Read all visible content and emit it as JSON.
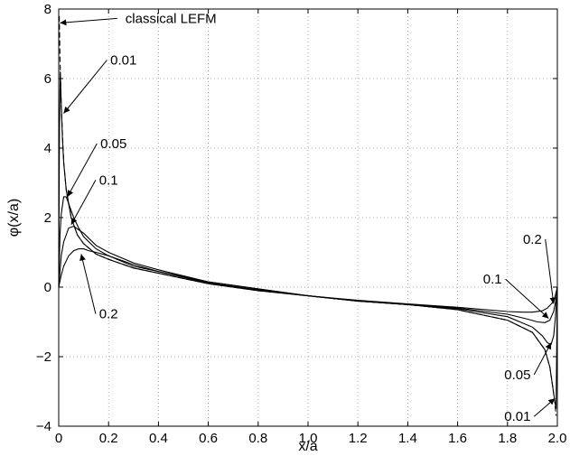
{
  "chart_data": {
    "type": "line",
    "title": "",
    "xlabel": "x/a",
    "ylabel": "φ(x/a)",
    "xlim": [
      0,
      2
    ],
    "ylim": [
      -4,
      8
    ],
    "grid": true,
    "x_ticks": [
      "0",
      "0.2",
      "0.4",
      "0.6",
      "0.8",
      "1.0",
      "1.2",
      "1.4",
      "1.6",
      "1.8",
      "2.0"
    ],
    "y_ticks": [
      "−4",
      "−2",
      "0",
      "2",
      "4",
      "6",
      "8"
    ],
    "series": [
      {
        "name": "classical LEFM",
        "style": "dashed",
        "x": [
          0.002,
          0.005,
          0.01,
          0.02,
          0.03,
          0.05,
          0.075,
          0.1,
          0.15,
          0.2,
          0.3,
          0.4,
          0.6,
          0.8,
          1.0,
          1.2,
          1.4,
          1.6,
          1.8,
          1.9,
          1.95,
          1.97,
          1.98,
          1.99,
          1.995
        ],
        "values": [
          7.8,
          6.6,
          5.2,
          3.6,
          2.8,
          2.0,
          1.5,
          1.25,
          0.95,
          0.8,
          0.55,
          0.4,
          0.1,
          -0.1,
          -0.25,
          -0.4,
          -0.5,
          -0.65,
          -0.95,
          -1.3,
          -1.8,
          -2.3,
          -2.8,
          -3.3,
          -3.7
        ]
      },
      {
        "name": "0.01",
        "style": "solid",
        "x": [
          0.0,
          0.003,
          0.006,
          0.01,
          0.015,
          0.02,
          0.03,
          0.05,
          0.075,
          0.1,
          0.15,
          0.2,
          0.3,
          0.4,
          0.6,
          0.8,
          1.0,
          1.2,
          1.4,
          1.6,
          1.8,
          1.9,
          1.95,
          1.97,
          1.98,
          1.99,
          1.995,
          2.0
        ],
        "values": [
          0.0,
          4.5,
          6.2,
          5.3,
          4.3,
          3.6,
          2.8,
          2.0,
          1.5,
          1.25,
          0.95,
          0.8,
          0.55,
          0.4,
          0.1,
          -0.1,
          -0.25,
          -0.4,
          -0.5,
          -0.65,
          -0.95,
          -1.3,
          -1.8,
          -2.3,
          -2.8,
          -3.3,
          -3.5,
          0.0
        ]
      },
      {
        "name": "0.05",
        "style": "solid",
        "x": [
          0.0,
          0.005,
          0.01,
          0.02,
          0.03,
          0.04,
          0.06,
          0.08,
          0.1,
          0.15,
          0.2,
          0.3,
          0.4,
          0.6,
          0.8,
          1.0,
          1.2,
          1.4,
          1.6,
          1.8,
          1.9,
          1.94,
          1.96,
          1.975,
          1.985,
          1.992,
          2.0
        ],
        "values": [
          0.0,
          1.5,
          2.1,
          2.6,
          2.6,
          2.4,
          2.0,
          1.7,
          1.45,
          1.1,
          0.9,
          0.6,
          0.45,
          0.12,
          -0.08,
          -0.25,
          -0.4,
          -0.5,
          -0.62,
          -0.85,
          -1.15,
          -1.4,
          -1.6,
          -1.65,
          -1.4,
          -0.9,
          0.0
        ]
      },
      {
        "name": "0.1",
        "style": "solid",
        "x": [
          0.0,
          0.01,
          0.02,
          0.04,
          0.06,
          0.08,
          0.1,
          0.15,
          0.2,
          0.3,
          0.4,
          0.6,
          0.8,
          1.0,
          1.2,
          1.4,
          1.6,
          1.8,
          1.88,
          1.92,
          1.95,
          1.97,
          1.985,
          1.995,
          2.0
        ],
        "values": [
          0.0,
          0.9,
          1.3,
          1.7,
          1.75,
          1.65,
          1.55,
          1.2,
          1.0,
          0.7,
          0.5,
          0.15,
          -0.05,
          -0.25,
          -0.4,
          -0.5,
          -0.6,
          -0.78,
          -0.92,
          -1.0,
          -1.02,
          -0.95,
          -0.7,
          -0.35,
          0.0
        ]
      },
      {
        "name": "0.2",
        "style": "solid",
        "x": [
          0.0,
          0.01,
          0.02,
          0.04,
          0.06,
          0.08,
          0.1,
          0.12,
          0.15,
          0.2,
          0.3,
          0.4,
          0.6,
          0.8,
          1.0,
          1.2,
          1.4,
          1.6,
          1.8,
          1.86,
          1.9,
          1.94,
          1.96,
          1.98,
          1.99,
          2.0
        ],
        "values": [
          0.0,
          0.35,
          0.6,
          0.9,
          1.05,
          1.1,
          1.1,
          1.05,
          1.0,
          0.9,
          0.65,
          0.45,
          0.15,
          -0.05,
          -0.25,
          -0.38,
          -0.48,
          -0.58,
          -0.7,
          -0.72,
          -0.72,
          -0.68,
          -0.6,
          -0.45,
          -0.3,
          0.0
        ]
      }
    ],
    "annotations": [
      {
        "text": "classical LEFM",
        "label_x": 0.45,
        "label_y": 7.6,
        "tip_x": 0.005,
        "tip_y": 7.6
      },
      {
        "text": "0.01",
        "label_x": 0.26,
        "label_y": 6.4,
        "tip_x": 0.02,
        "tip_y": 5.0
      },
      {
        "text": "0.05",
        "label_x": 0.22,
        "label_y": 4.0,
        "tip_x": 0.035,
        "tip_y": 2.6
      },
      {
        "text": "0.1",
        "label_x": 0.2,
        "label_y": 2.95,
        "tip_x": 0.05,
        "tip_y": 1.8
      },
      {
        "text": "0.2",
        "label_x": 0.2,
        "label_y": -0.9,
        "tip_x": 0.09,
        "tip_y": 0.95
      },
      {
        "text": "0.2",
        "label_x": 1.9,
        "label_y": 1.25,
        "tip_x": 1.985,
        "tip_y": -0.48
      },
      {
        "text": "0.1",
        "label_x": 1.74,
        "label_y": 0.1,
        "tip_x": 1.965,
        "tip_y": -0.9
      },
      {
        "text": "0.05",
        "label_x": 1.84,
        "label_y": -2.65,
        "tip_x": 1.975,
        "tip_y": -1.6
      },
      {
        "text": "0.01",
        "label_x": 1.84,
        "label_y": -3.85,
        "tip_x": 1.99,
        "tip_y": -3.2
      }
    ]
  }
}
